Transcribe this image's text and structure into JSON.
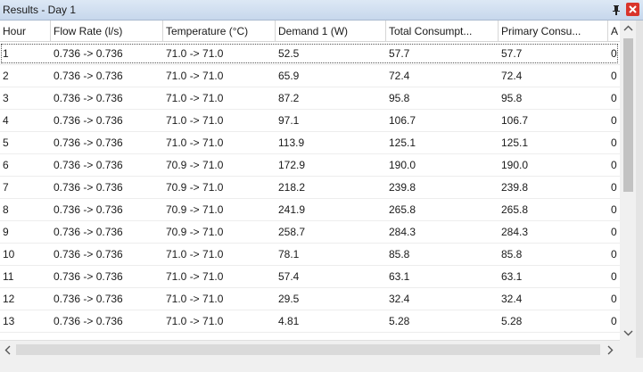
{
  "window": {
    "title": "Results - Day 1"
  },
  "table": {
    "columns": [
      "Hour",
      "Flow Rate (l/s)",
      "Temperature (°C)",
      "Demand 1 (W)",
      "Total Consumpt...",
      "Primary Consu...",
      "A"
    ],
    "rows": [
      [
        "1",
        "0.736 -> 0.736",
        "71.0 -> 71.0",
        "52.5",
        "57.7",
        "57.7",
        "0"
      ],
      [
        "2",
        "0.736 -> 0.736",
        "71.0 -> 71.0",
        "65.9",
        "72.4",
        "72.4",
        "0"
      ],
      [
        "3",
        "0.736 -> 0.736",
        "71.0 -> 71.0",
        "87.2",
        "95.8",
        "95.8",
        "0"
      ],
      [
        "4",
        "0.736 -> 0.736",
        "71.0 -> 71.0",
        "97.1",
        "106.7",
        "106.7",
        "0"
      ],
      [
        "5",
        "0.736 -> 0.736",
        "71.0 -> 71.0",
        "113.9",
        "125.1",
        "125.1",
        "0"
      ],
      [
        "6",
        "0.736 -> 0.736",
        "70.9 -> 71.0",
        "172.9",
        "190.0",
        "190.0",
        "0"
      ],
      [
        "7",
        "0.736 -> 0.736",
        "70.9 -> 71.0",
        "218.2",
        "239.8",
        "239.8",
        "0"
      ],
      [
        "8",
        "0.736 -> 0.736",
        "70.9 -> 71.0",
        "241.9",
        "265.8",
        "265.8",
        "0"
      ],
      [
        "9",
        "0.736 -> 0.736",
        "70.9 -> 71.0",
        "258.7",
        "284.3",
        "284.3",
        "0"
      ],
      [
        "10",
        "0.736 -> 0.736",
        "71.0 -> 71.0",
        "78.1",
        "85.8",
        "85.8",
        "0"
      ],
      [
        "11",
        "0.736 -> 0.736",
        "71.0 -> 71.0",
        "57.4",
        "63.1",
        "63.1",
        "0"
      ],
      [
        "12",
        "0.736 -> 0.736",
        "71.0 -> 71.0",
        "29.5",
        "32.4",
        "32.4",
        "0"
      ],
      [
        "13",
        "0.736 -> 0.736",
        "71.0 -> 71.0",
        "4.81",
        "5.28",
        "5.28",
        "0"
      ]
    ]
  }
}
